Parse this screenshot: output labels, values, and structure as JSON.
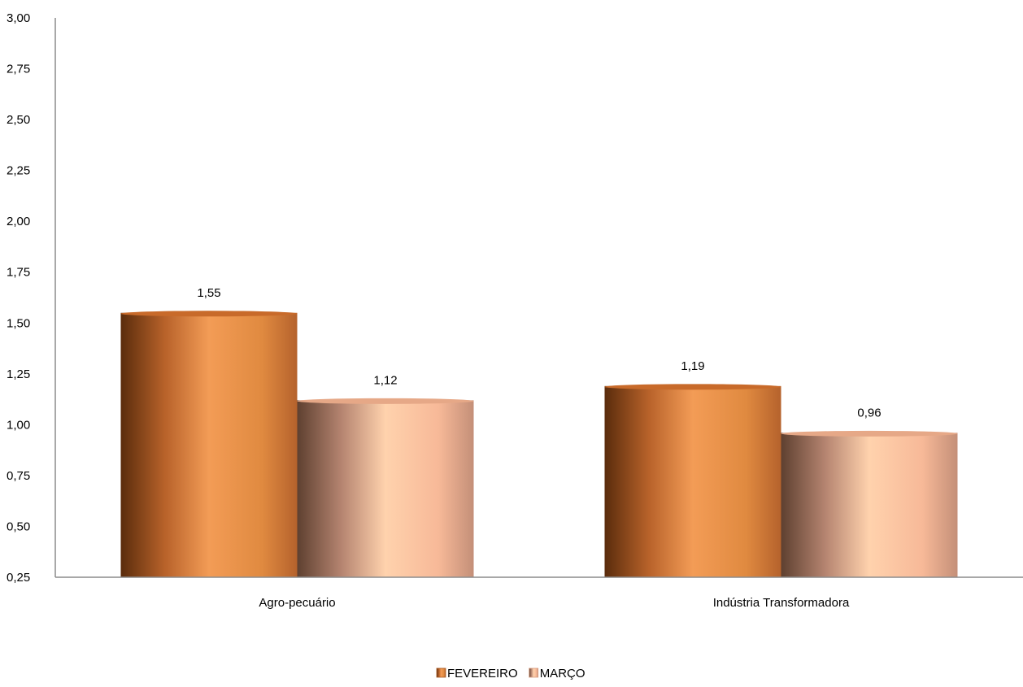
{
  "chart_data": {
    "type": "bar",
    "categories": [
      "Agro-pecuário",
      "Indústria Transformadora"
    ],
    "series": [
      {
        "name": "FEVEREIRO",
        "values": [
          1.55,
          1.19
        ],
        "color": "#E8873A",
        "value_labels": [
          "1,55",
          "1,19"
        ]
      },
      {
        "name": "MARÇO",
        "values": [
          1.12,
          0.96
        ],
        "color": "#F5B894",
        "value_labels": [
          "1,12",
          "0,96"
        ]
      }
    ],
    "ylim": [
      0.25,
      3.0
    ],
    "yticks": [
      0.25,
      0.5,
      0.75,
      1.0,
      1.25,
      1.5,
      1.75,
      2.0,
      2.25,
      2.5,
      2.75,
      3.0
    ],
    "ytick_labels": [
      "0,25",
      "0,50",
      "0,75",
      "1,00",
      "1,25",
      "1,50",
      "1,75",
      "2,00",
      "2,25",
      "2,50",
      "2,75",
      "3,00"
    ],
    "grid": false,
    "legend": "bottom-center",
    "title": "",
    "xlabel": "",
    "ylabel": ""
  }
}
